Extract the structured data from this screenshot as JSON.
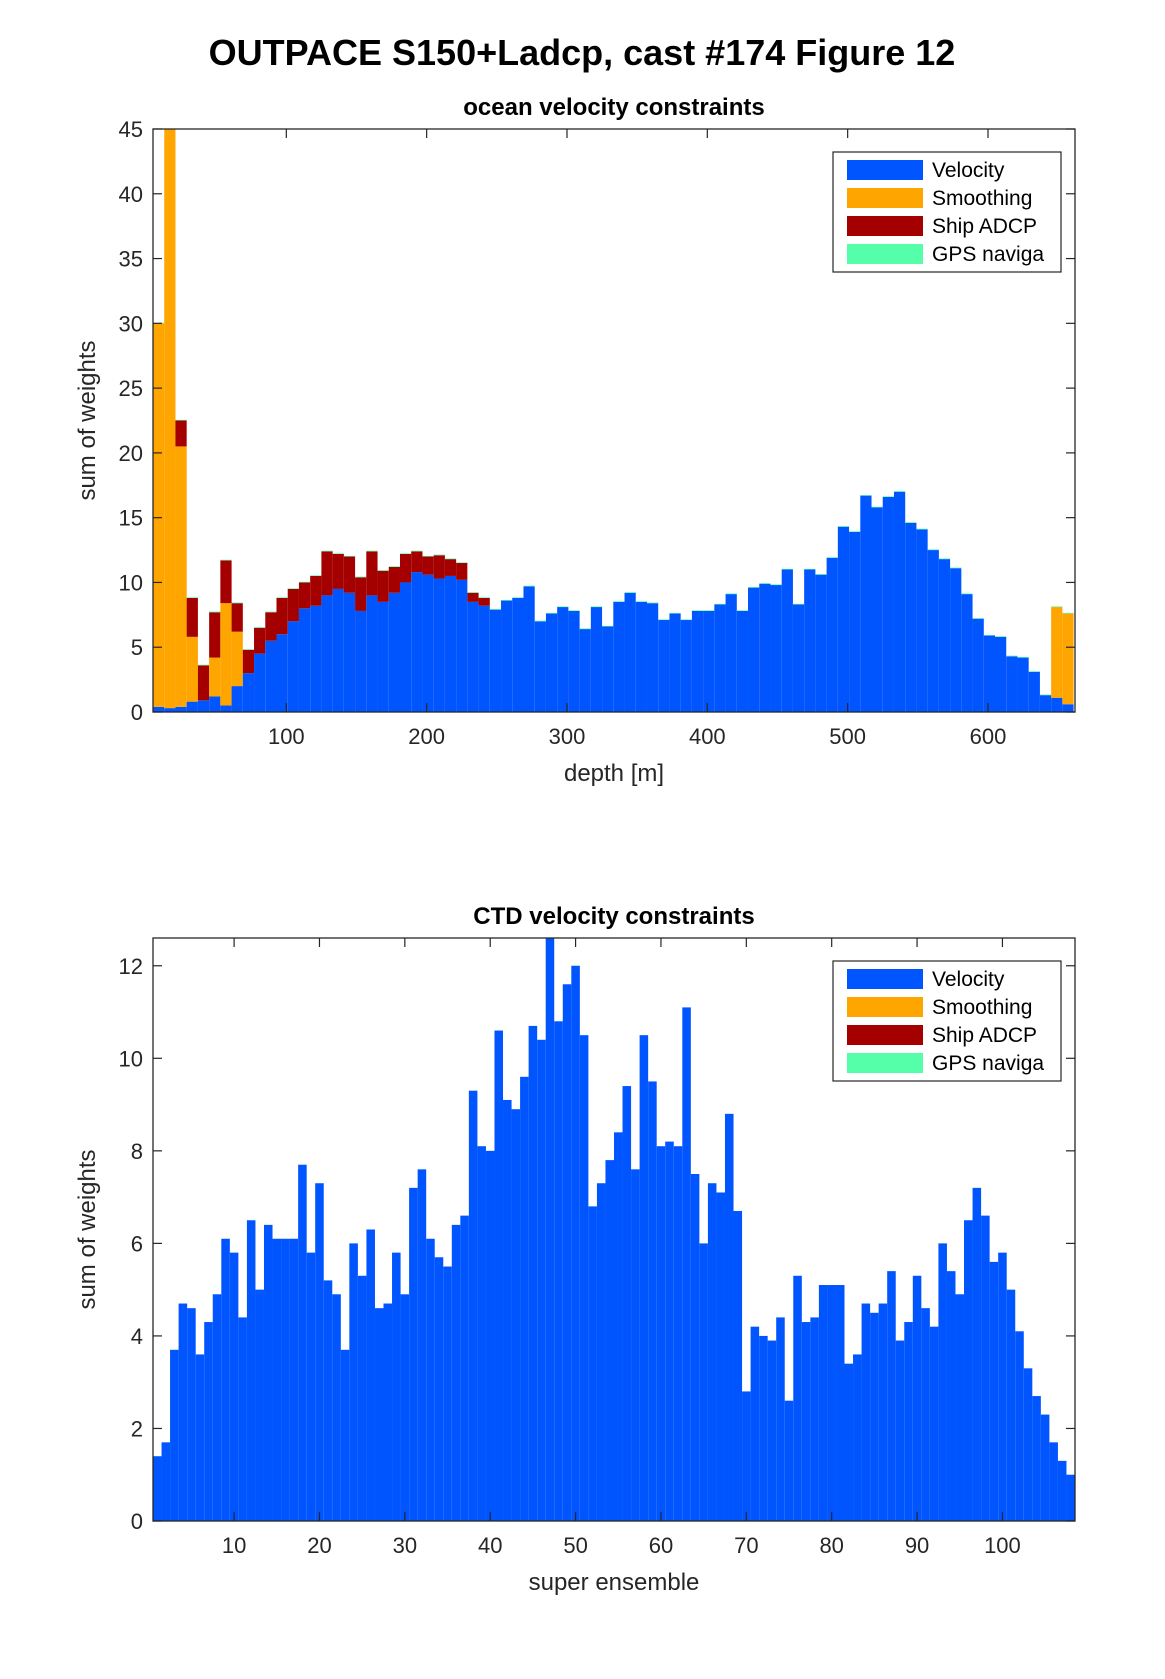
{
  "figure": {
    "title": "OUTPACE S150+Ladcp, cast #174  Figure 12"
  },
  "legend": {
    "entries": [
      {
        "label": "Velocity",
        "color": "#0055ff"
      },
      {
        "label": "Smoothing",
        "color": "#ffa500"
      },
      {
        "label": "Ship ADCP",
        "color": "#a50000"
      },
      {
        "label": "GPS naviga",
        "color": "#55ffaa"
      }
    ]
  },
  "chart_data": [
    {
      "type": "bar",
      "stacked": true,
      "title": "ocean velocity constraints",
      "xlabel": "depth [m]",
      "ylabel": "sum of weights",
      "xlim": [
        5,
        662
      ],
      "ylim": [
        0,
        45
      ],
      "bin_width": 8,
      "xticks": [
        100,
        200,
        300,
        400,
        500,
        600
      ],
      "yticks": [
        0,
        5,
        10,
        15,
        20,
        25,
        30,
        35,
        40,
        45
      ],
      "legend_position": "top-right",
      "x": [
        9,
        17,
        25,
        33,
        41,
        49,
        57,
        65,
        73,
        81,
        89,
        97,
        105,
        113,
        121,
        129,
        137,
        145,
        153,
        161,
        169,
        177,
        185,
        193,
        201,
        209,
        217,
        225,
        233,
        241,
        249,
        257,
        265,
        273,
        281,
        289,
        297,
        305,
        313,
        321,
        329,
        337,
        345,
        353,
        361,
        369,
        377,
        385,
        393,
        401,
        409,
        417,
        425,
        433,
        441,
        449,
        457,
        465,
        473,
        481,
        489,
        497,
        505,
        513,
        521,
        529,
        537,
        545,
        553,
        561,
        569,
        577,
        585,
        593,
        601,
        609,
        617,
        625,
        633,
        641,
        649,
        657
      ],
      "series": [
        {
          "name": "Velocity",
          "values": [
            0.4,
            0.3,
            0.4,
            0.8,
            0.9,
            1.2,
            0.5,
            2.0,
            3.0,
            4.5,
            5.5,
            6.0,
            7.0,
            8.0,
            8.2,
            9.0,
            9.5,
            9.2,
            7.8,
            9.0,
            8.5,
            9.2,
            10.0,
            10.8,
            10.6,
            10.3,
            10.5,
            10.2,
            8.5,
            8.2,
            7.9,
            8.6,
            8.8,
            9.7,
            7.0,
            7.6,
            8.1,
            7.8,
            6.4,
            8.1,
            6.6,
            8.5,
            9.2,
            8.5,
            8.4,
            7.1,
            7.6,
            7.1,
            7.8,
            7.8,
            8.3,
            9.1,
            7.8,
            9.6,
            9.9,
            9.8,
            11.0,
            8.3,
            11.0,
            10.6,
            11.9,
            14.3,
            13.9,
            16.7,
            15.8,
            16.6,
            17.0,
            14.6,
            14.1,
            12.5,
            11.8,
            11.1,
            9.1,
            7.2,
            5.9,
            5.8,
            4.3,
            4.2,
            3.1,
            1.3,
            1.1,
            0.6
          ]
        },
        {
          "name": "Smoothing",
          "values": [
            29.6,
            44.7,
            20.1,
            5.0,
            0,
            3.0,
            7.9,
            4.2,
            0,
            0,
            0,
            0,
            0,
            0,
            0,
            0,
            0,
            0,
            0,
            0,
            0,
            0,
            0,
            0,
            0,
            0,
            0,
            0,
            0,
            0,
            0,
            0,
            0,
            0,
            0,
            0,
            0,
            0,
            0,
            0,
            0,
            0,
            0,
            0,
            0,
            0,
            0,
            0,
            0,
            0,
            0,
            0,
            0,
            0,
            0,
            0,
            0,
            0,
            0,
            0,
            0,
            0,
            0,
            0,
            0,
            0,
            0,
            0,
            0,
            0,
            0,
            0,
            0,
            0,
            0,
            0,
            0,
            0,
            0,
            0,
            7.0,
            7.0
          ]
        },
        {
          "name": "Ship ADCP",
          "values": [
            0,
            0,
            2.0,
            3.0,
            2.7,
            3.5,
            3.3,
            2.2,
            1.8,
            2.0,
            2.2,
            2.8,
            2.5,
            2.0,
            2.3,
            3.4,
            2.7,
            2.8,
            2.6,
            3.4,
            2.4,
            2.0,
            2.2,
            1.6,
            1.4,
            1.8,
            1.3,
            1.3,
            0.7,
            0.6,
            0,
            0,
            0,
            0,
            0,
            0,
            0,
            0,
            0,
            0,
            0,
            0,
            0,
            0,
            0,
            0,
            0,
            0,
            0,
            0,
            0,
            0,
            0,
            0,
            0,
            0,
            0,
            0,
            0,
            0,
            0,
            0,
            0,
            0,
            0,
            0,
            0,
            0,
            0,
            0,
            0,
            0,
            0,
            0,
            0,
            0,
            0,
            0,
            0,
            0,
            0,
            0
          ]
        },
        {
          "name": "GPS naviga",
          "values": [
            0.05,
            0.05,
            0.05,
            0.05,
            0.05,
            0.05,
            0.05,
            0.05,
            0.05,
            0.05,
            0.05,
            0.05,
            0.05,
            0.05,
            0.05,
            0.05,
            0.05,
            0.05,
            0.05,
            0.05,
            0.05,
            0.05,
            0.05,
            0.05,
            0.05,
            0.05,
            0.05,
            0.05,
            0.05,
            0.05,
            0.05,
            0.05,
            0.05,
            0.05,
            0.05,
            0.05,
            0.05,
            0.05,
            0.05,
            0.05,
            0.05,
            0.05,
            0.05,
            0.05,
            0.05,
            0.05,
            0.05,
            0.05,
            0.05,
            0.05,
            0.05,
            0.05,
            0.05,
            0.05,
            0.05,
            0.05,
            0.05,
            0.05,
            0.05,
            0.05,
            0.05,
            0.05,
            0.05,
            0.05,
            0.05,
            0.05,
            0.05,
            0.05,
            0.05,
            0.05,
            0.05,
            0.05,
            0.05,
            0.05,
            0.05,
            0.05,
            0.05,
            0.05,
            0.05,
            0.05,
            0.05,
            0.05
          ]
        }
      ]
    },
    {
      "type": "bar",
      "stacked": true,
      "title": "CTD velocity constraints",
      "xlabel": "super ensemble",
      "ylabel": "sum of weights",
      "xlim": [
        0.5,
        108.5
      ],
      "ylim": [
        0,
        12.6
      ],
      "bin_width": 1,
      "xticks": [
        10,
        20,
        30,
        40,
        50,
        60,
        70,
        80,
        90,
        100
      ],
      "yticks": [
        0,
        2,
        4,
        6,
        8,
        10,
        12
      ],
      "legend_position": "top-right",
      "x_start": 1,
      "series": [
        {
          "name": "Velocity",
          "values": [
            1.4,
            1.7,
            3.7,
            4.7,
            4.6,
            3.6,
            4.3,
            4.9,
            6.1,
            5.8,
            4.4,
            6.5,
            5.0,
            6.4,
            6.1,
            6.1,
            6.1,
            7.7,
            5.8,
            7.3,
            5.2,
            4.9,
            3.7,
            6.0,
            5.3,
            6.3,
            4.6,
            4.7,
            5.8,
            4.9,
            7.2,
            7.6,
            6.1,
            5.7,
            5.5,
            6.4,
            6.6,
            9.3,
            8.1,
            8.0,
            10.6,
            9.1,
            8.9,
            9.6,
            10.7,
            10.4,
            12.6,
            10.8,
            11.6,
            12.0,
            10.5,
            6.8,
            7.3,
            7.8,
            8.4,
            9.4,
            7.6,
            10.5,
            9.5,
            8.1,
            8.2,
            8.1,
            11.1,
            7.5,
            6.0,
            7.3,
            7.1,
            8.8,
            6.7,
            2.8,
            4.2,
            4.0,
            3.9,
            4.4,
            2.6,
            5.3,
            4.3,
            4.4,
            5.1,
            5.1,
            5.1,
            3.4,
            3.6,
            4.7,
            4.5,
            4.7,
            5.4,
            3.9,
            4.3,
            5.3,
            4.6,
            4.2,
            6.0,
            5.4,
            4.9,
            6.5,
            7.2,
            6.6,
            5.6,
            5.8,
            5.0,
            4.1,
            3.3,
            2.7,
            2.3,
            1.7,
            1.3,
            1.0
          ]
        },
        {
          "name": "Smoothing",
          "values": []
        },
        {
          "name": "Ship ADCP",
          "values": []
        },
        {
          "name": "GPS naviga",
          "values": []
        }
      ]
    }
  ]
}
